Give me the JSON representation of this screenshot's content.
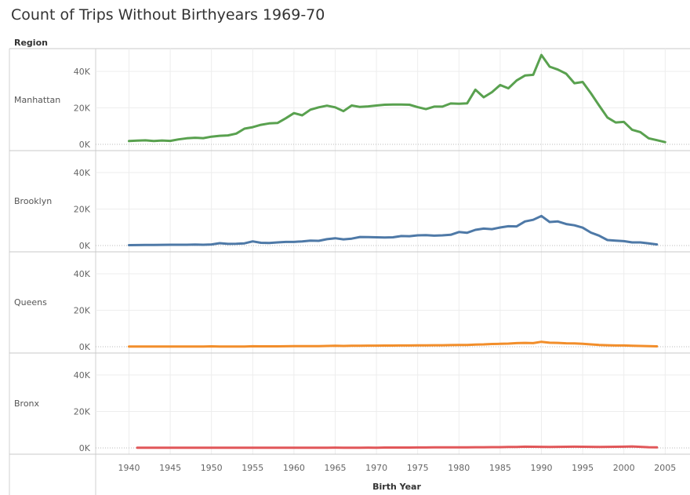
{
  "title": "Count of Trips Without Birthyears 1969-70",
  "chart_data": {
    "type": "line",
    "title": "Count of Trips Without Birthyears 1969-70",
    "row_header": "Region",
    "xlabel": "Birth Year",
    "ylabel": "",
    "xlim": [
      1938,
      2006
    ],
    "ylim": [
      0,
      50000
    ],
    "x_ticks": [
      1940,
      1945,
      1950,
      1955,
      1960,
      1965,
      1970,
      1975,
      1980,
      1985,
      1990,
      1995,
      2000,
      2005
    ],
    "y_ticks": [
      0,
      20000,
      40000
    ],
    "y_tick_labels": [
      "0K",
      "20K",
      "40K"
    ],
    "grid": true,
    "legend": "none",
    "series": [
      {
        "name": "Manhattan",
        "color": "#59a14f",
        "x": [
          1940,
          1941,
          1942,
          1943,
          1944,
          1945,
          1946,
          1947,
          1948,
          1949,
          1950,
          1951,
          1952,
          1953,
          1954,
          1955,
          1956,
          1957,
          1958,
          1959,
          1960,
          1961,
          1962,
          1963,
          1964,
          1965,
          1966,
          1967,
          1968,
          1969,
          1970,
          1971,
          1972,
          1973,
          1974,
          1975,
          1976,
          1977,
          1978,
          1979,
          1980,
          1981,
          1982,
          1983,
          1984,
          1985,
          1986,
          1987,
          1988,
          1989,
          1990,
          1991,
          1992,
          1993,
          1994,
          1995,
          1996,
          1997,
          1998,
          1999,
          2000,
          2001,
          2002,
          2003,
          2004,
          2005
        ],
        "values": [
          1800,
          2000,
          2200,
          1800,
          2100,
          1900,
          2700,
          3300,
          3600,
          3400,
          4200,
          4700,
          4900,
          5900,
          8600,
          9400,
          10700,
          11500,
          11700,
          14300,
          17100,
          15900,
          19000,
          20300,
          21200,
          20300,
          18200,
          21300,
          20500,
          20800,
          21300,
          21700,
          21800,
          21800,
          21700,
          20400,
          19300,
          20700,
          20700,
          22400,
          22300,
          22500,
          30000,
          25800,
          28600,
          32500,
          30700,
          35000,
          37700,
          38100,
          49000,
          42600,
          41000,
          38700,
          33500,
          34200,
          28000,
          21300,
          14700,
          12000,
          12300,
          8000,
          6700,
          3300,
          2300,
          1200
        ]
      },
      {
        "name": "Brooklyn",
        "color": "#4e79a7",
        "x": [
          1940,
          1941,
          1942,
          1943,
          1944,
          1945,
          1946,
          1947,
          1948,
          1949,
          1950,
          1951,
          1952,
          1953,
          1954,
          1955,
          1956,
          1957,
          1958,
          1959,
          1960,
          1961,
          1962,
          1963,
          1964,
          1965,
          1966,
          1967,
          1968,
          1969,
          1970,
          1971,
          1972,
          1973,
          1974,
          1975,
          1976,
          1977,
          1978,
          1979,
          1980,
          1981,
          1982,
          1983,
          1984,
          1985,
          1986,
          1987,
          1988,
          1989,
          1990,
          1991,
          1992,
          1993,
          1994,
          1995,
          1996,
          1997,
          1998,
          1999,
          2000,
          2001,
          2002,
          2003,
          2004
        ],
        "values": [
          200,
          250,
          300,
          300,
          400,
          450,
          450,
          450,
          500,
          450,
          600,
          1300,
          900,
          1000,
          1200,
          2300,
          1500,
          1400,
          1700,
          2000,
          2000,
          2300,
          2700,
          2600,
          3500,
          4000,
          3400,
          3800,
          4700,
          4600,
          4500,
          4400,
          4500,
          5200,
          5100,
          5600,
          5700,
          5400,
          5600,
          5900,
          7400,
          7000,
          8600,
          9300,
          9000,
          9900,
          10600,
          10500,
          13200,
          14100,
          16200,
          12900,
          13200,
          11800,
          11100,
          9800,
          7100,
          5400,
          3000,
          2700,
          2400,
          1700,
          1700,
          1200,
          600
        ]
      },
      {
        "name": "Queens",
        "color": "#f28e2b",
        "x": [
          1940,
          1941,
          1942,
          1943,
          1944,
          1945,
          1946,
          1947,
          1948,
          1949,
          1950,
          1951,
          1952,
          1953,
          1954,
          1955,
          1956,
          1957,
          1958,
          1959,
          1960,
          1961,
          1962,
          1963,
          1964,
          1965,
          1966,
          1967,
          1968,
          1969,
          1970,
          1971,
          1972,
          1973,
          1974,
          1975,
          1976,
          1977,
          1978,
          1979,
          1980,
          1981,
          1982,
          1983,
          1984,
          1985,
          1986,
          1987,
          1988,
          1989,
          1990,
          1991,
          1992,
          1993,
          1994,
          1995,
          1996,
          1997,
          1998,
          1999,
          2000,
          2001,
          2002,
          2003,
          2004
        ],
        "values": [
          100,
          100,
          100,
          100,
          100,
          100,
          100,
          100,
          100,
          100,
          200,
          150,
          150,
          150,
          150,
          250,
          200,
          200,
          200,
          250,
          300,
          300,
          350,
          350,
          450,
          500,
          450,
          550,
          550,
          600,
          600,
          650,
          650,
          700,
          700,
          750,
          750,
          800,
          800,
          900,
          1000,
          1000,
          1200,
          1300,
          1500,
          1600,
          1700,
          2000,
          2100,
          2000,
          2700,
          2200,
          2100,
          1900,
          1800,
          1600,
          1300,
          1000,
          800,
          700,
          700,
          500,
          450,
          300,
          200
        ]
      },
      {
        "name": "Bronx",
        "color": "#e15759",
        "x": [
          1941,
          1942,
          1943,
          1944,
          1945,
          1946,
          1947,
          1948,
          1949,
          1950,
          1951,
          1952,
          1953,
          1954,
          1955,
          1956,
          1957,
          1958,
          1959,
          1960,
          1961,
          1962,
          1963,
          1964,
          1965,
          1966,
          1967,
          1968,
          1969,
          1970,
          1971,
          1972,
          1973,
          1974,
          1975,
          1976,
          1977,
          1978,
          1979,
          1980,
          1981,
          1982,
          1983,
          1984,
          1985,
          1986,
          1987,
          1988,
          1989,
          1990,
          1991,
          1992,
          1993,
          1994,
          1995,
          1996,
          1997,
          1998,
          1999,
          2000,
          2001,
          2002,
          2003,
          2004
        ],
        "values": [
          80,
          80,
          80,
          80,
          80,
          80,
          80,
          80,
          80,
          100,
          80,
          100,
          80,
          100,
          100,
          100,
          100,
          100,
          100,
          120,
          120,
          150,
          120,
          150,
          180,
          120,
          150,
          150,
          180,
          150,
          200,
          200,
          220,
          220,
          250,
          250,
          300,
          300,
          300,
          350,
          350,
          400,
          400,
          450,
          450,
          500,
          550,
          700,
          650,
          600,
          550,
          600,
          650,
          700,
          650,
          600,
          550,
          600,
          650,
          700,
          800,
          600,
          400,
          300
        ]
      }
    ]
  }
}
